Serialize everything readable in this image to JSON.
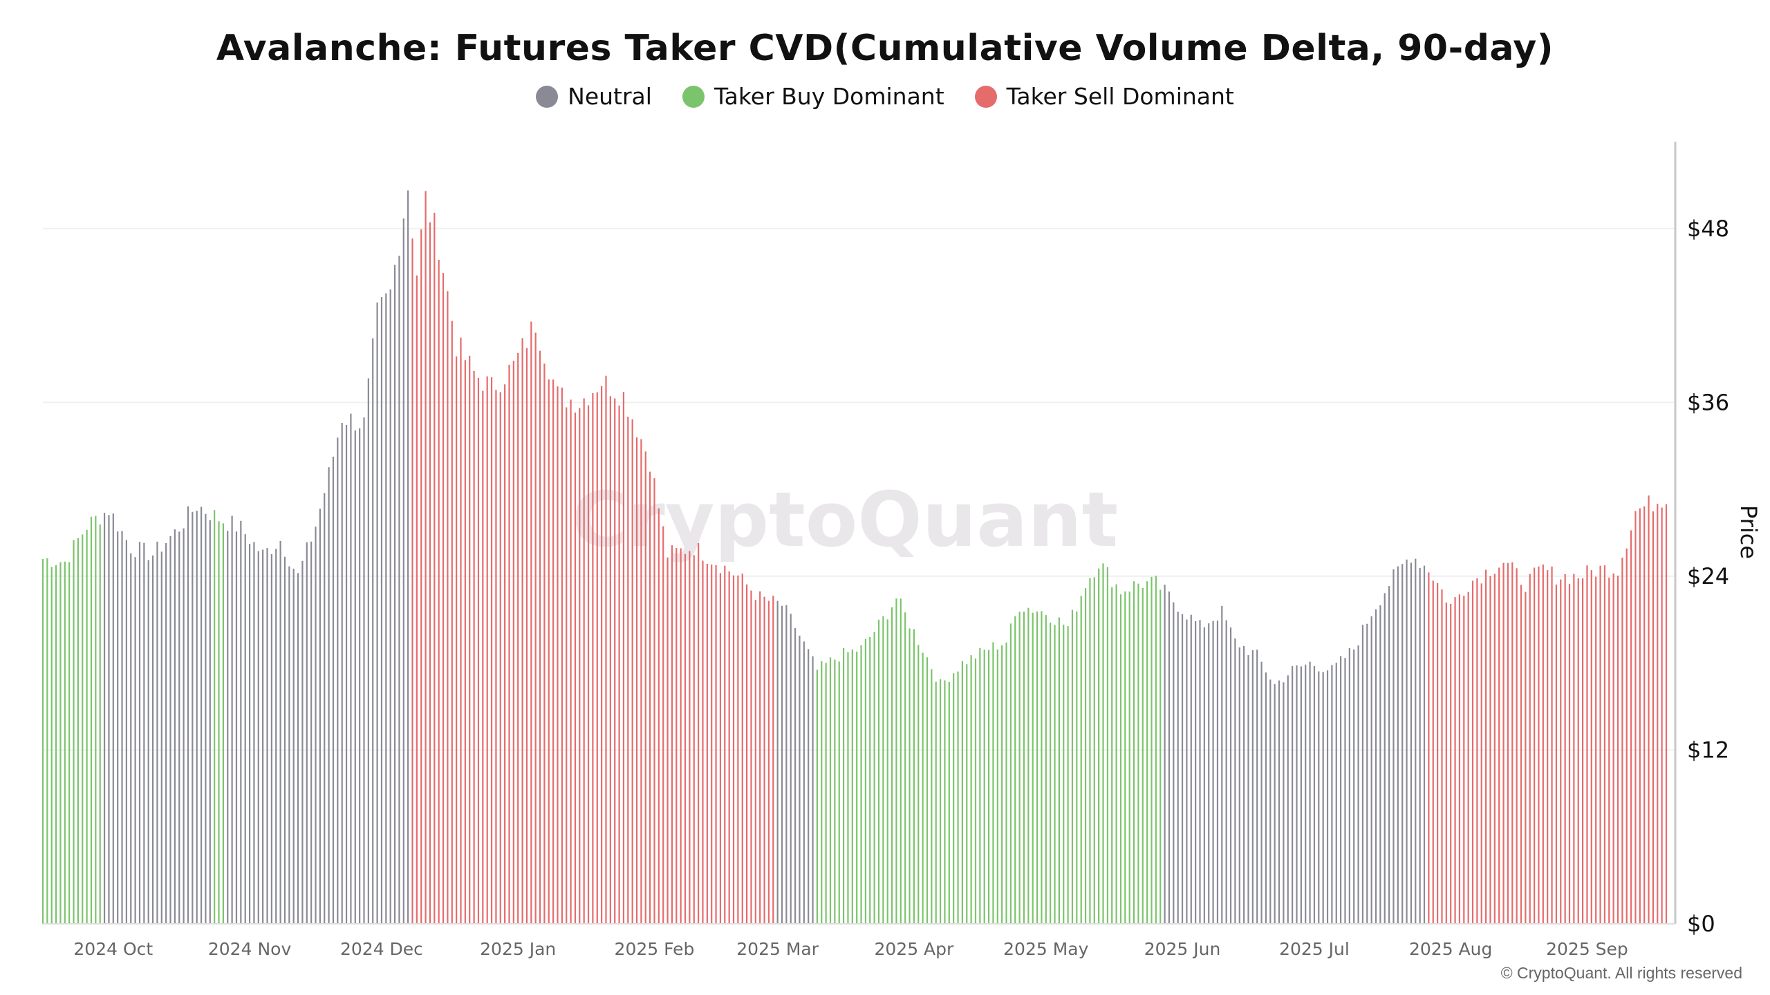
{
  "chart_data": {
    "type": "bar",
    "title": "Avalanche: Futures Taker CVD(Cumulative Volume Delta, 90-day)",
    "ylabel": "Price",
    "ylim": [
      0,
      54
    ],
    "yticks": [
      0,
      12,
      24,
      36,
      48
    ],
    "ytick_labels": [
      "$0",
      "$12",
      "$24",
      "$36",
      "$48"
    ],
    "y_axis_position": "right",
    "legend_position": "top-center",
    "grid": true,
    "x_range": [
      "2024-09-15",
      "2025-09-19"
    ],
    "xticks": [
      {
        "date": "2024-10-01",
        "label": "2024 Oct"
      },
      {
        "date": "2024-11-01",
        "label": "2024 Nov"
      },
      {
        "date": "2024-12-01",
        "label": "2024 Dec"
      },
      {
        "date": "2025-01-01",
        "label": "2025 Jan"
      },
      {
        "date": "2025-02-01",
        "label": "2025 Feb"
      },
      {
        "date": "2025-03-01",
        "label": "2025 Mar"
      },
      {
        "date": "2025-04-01",
        "label": "2025 Apr"
      },
      {
        "date": "2025-05-01",
        "label": "2025 May"
      },
      {
        "date": "2025-06-01",
        "label": "2025 Jun"
      },
      {
        "date": "2025-07-01",
        "label": "2025 Jul"
      },
      {
        "date": "2025-08-01",
        "label": "2025 Aug"
      },
      {
        "date": "2025-09-01",
        "label": "2025 Sep"
      }
    ],
    "series": [
      {
        "name": "Neutral",
        "color": "#8a8a96"
      },
      {
        "name": "Taker Buy Dominant",
        "color": "#7cc46c"
      },
      {
        "name": "Taker Sell Dominant",
        "color": "#e66b6b"
      }
    ],
    "price_keypoints": [
      [
        "2024-09-15",
        25.2
      ],
      [
        "2024-09-20",
        25.0
      ],
      [
        "2024-09-25",
        27.5
      ],
      [
        "2024-09-30",
        28.6
      ],
      [
        "2024-10-05",
        26.0
      ],
      [
        "2024-10-10",
        25.5
      ],
      [
        "2024-10-15",
        27.0
      ],
      [
        "2024-10-20",
        28.9
      ],
      [
        "2024-10-25",
        28.0
      ],
      [
        "2024-10-30",
        27.3
      ],
      [
        "2024-11-04",
        25.5
      ],
      [
        "2024-11-08",
        26.5
      ],
      [
        "2024-11-12",
        24.0
      ],
      [
        "2024-11-16",
        27.5
      ],
      [
        "2024-11-19",
        31.0
      ],
      [
        "2024-11-22",
        35.0
      ],
      [
        "2024-11-27",
        34.5
      ],
      [
        "2024-11-30",
        42.0
      ],
      [
        "2024-12-03",
        43.5
      ],
      [
        "2024-12-07",
        51.0
      ],
      [
        "2024-12-09",
        45.0
      ],
      [
        "2024-12-11",
        50.0
      ],
      [
        "2024-12-14",
        47.0
      ],
      [
        "2024-12-18",
        40.0
      ],
      [
        "2024-12-22",
        38.0
      ],
      [
        "2024-12-26",
        37.0
      ],
      [
        "2024-12-31",
        38.5
      ],
      [
        "2025-01-05",
        41.5
      ],
      [
        "2025-01-10",
        36.5
      ],
      [
        "2025-01-15",
        36.0
      ],
      [
        "2025-01-20",
        37.5
      ],
      [
        "2025-01-25",
        36.5
      ],
      [
        "2025-01-31",
        32.0
      ],
      [
        "2025-02-04",
        25.5
      ],
      [
        "2025-02-10",
        26.0
      ],
      [
        "2025-02-15",
        25.0
      ],
      [
        "2025-02-20",
        24.0
      ],
      [
        "2025-02-25",
        22.5
      ],
      [
        "2025-03-02",
        22.0
      ],
      [
        "2025-03-05",
        20.5
      ],
      [
        "2025-03-10",
        17.5
      ],
      [
        "2025-03-15",
        18.5
      ],
      [
        "2025-03-20",
        19.0
      ],
      [
        "2025-03-25",
        21.0
      ],
      [
        "2025-03-28",
        22.5
      ],
      [
        "2025-04-03",
        19.0
      ],
      [
        "2025-04-07",
        16.5
      ],
      [
        "2025-04-12",
        18.0
      ],
      [
        "2025-04-18",
        19.0
      ],
      [
        "2025-04-22",
        19.5
      ],
      [
        "2025-04-25",
        22.0
      ],
      [
        "2025-05-01",
        21.5
      ],
      [
        "2025-05-06",
        20.5
      ],
      [
        "2025-05-10",
        23.5
      ],
      [
        "2025-05-13",
        25.0
      ],
      [
        "2025-05-18",
        23.0
      ],
      [
        "2025-05-22",
        23.5
      ],
      [
        "2025-05-26",
        23.5
      ],
      [
        "2025-05-31",
        22.0
      ],
      [
        "2025-06-05",
        20.5
      ],
      [
        "2025-06-10",
        21.5
      ],
      [
        "2025-06-13",
        19.5
      ],
      [
        "2025-06-18",
        18.5
      ],
      [
        "2025-06-22",
        16.5
      ],
      [
        "2025-06-26",
        17.5
      ],
      [
        "2025-06-30",
        18.0
      ],
      [
        "2025-07-05",
        17.5
      ],
      [
        "2025-07-10",
        19.0
      ],
      [
        "2025-07-14",
        21.5
      ],
      [
        "2025-07-18",
        23.5
      ],
      [
        "2025-07-23",
        25.5
      ],
      [
        "2025-07-27",
        24.5
      ],
      [
        "2025-08-01",
        22.0
      ],
      [
        "2025-08-05",
        23.5
      ],
      [
        "2025-08-10",
        24.5
      ],
      [
        "2025-08-13",
        25.0
      ],
      [
        "2025-08-18",
        23.5
      ],
      [
        "2025-08-22",
        24.5
      ],
      [
        "2025-08-25",
        24.0
      ],
      [
        "2025-08-30",
        24.0
      ],
      [
        "2025-09-04",
        24.5
      ],
      [
        "2025-09-08",
        24.5
      ],
      [
        "2025-09-12",
        28.5
      ],
      [
        "2025-09-19",
        29.5
      ]
    ],
    "regime_segments": [
      {
        "start": "2024-09-15",
        "end": "2024-09-28",
        "series": "Taker Buy Dominant"
      },
      {
        "start": "2024-09-29",
        "end": "2024-10-23",
        "series": "Neutral"
      },
      {
        "start": "2024-10-24",
        "end": "2024-10-26",
        "series": "Taker Buy Dominant"
      },
      {
        "start": "2024-10-27",
        "end": "2024-12-07",
        "series": "Neutral"
      },
      {
        "start": "2024-12-08",
        "end": "2025-02-28",
        "series": "Taker Sell Dominant"
      },
      {
        "start": "2025-03-01",
        "end": "2025-03-09",
        "series": "Neutral"
      },
      {
        "start": "2025-03-10",
        "end": "2025-05-27",
        "series": "Taker Buy Dominant"
      },
      {
        "start": "2025-05-28",
        "end": "2025-07-26",
        "series": "Neutral"
      },
      {
        "start": "2025-07-27",
        "end": "2025-09-19",
        "series": "Taker Sell Dominant"
      }
    ]
  },
  "legend": {
    "items": [
      {
        "label": "Neutral",
        "color": "#8a8a96"
      },
      {
        "label": "Taker Buy Dominant",
        "color": "#7cc46c"
      },
      {
        "label": "Taker Sell Dominant",
        "color": "#e66b6b"
      }
    ]
  },
  "watermark": "CryptoQuant",
  "footer": "© CryptoQuant. All rights reserved"
}
